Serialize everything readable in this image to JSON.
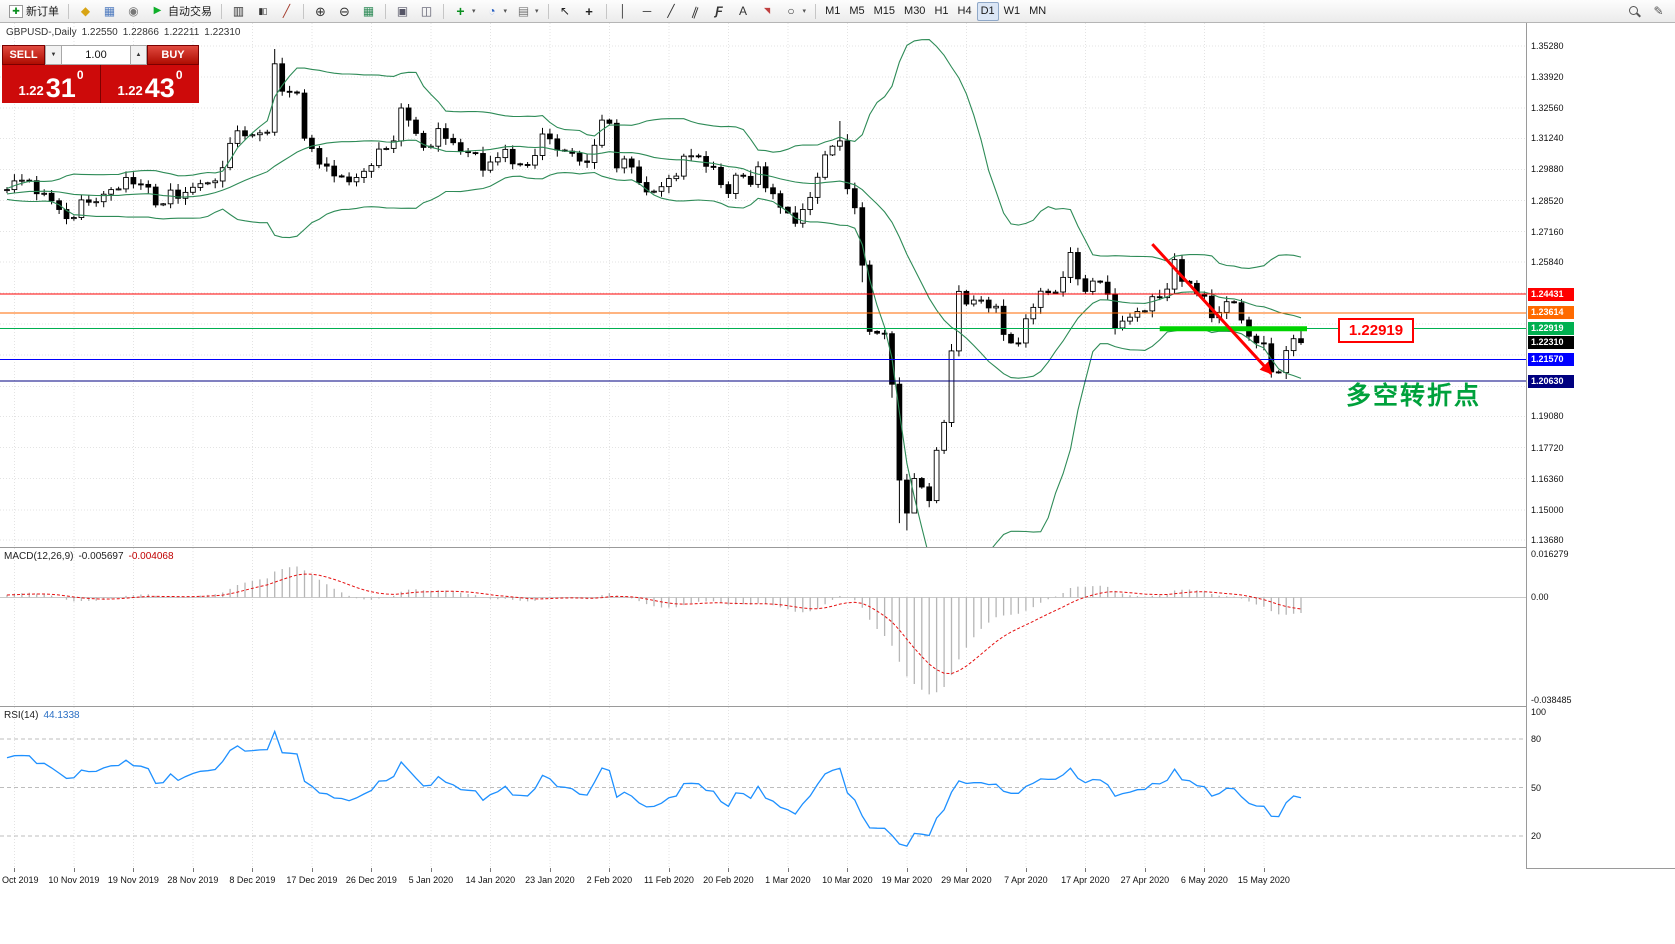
{
  "toolbar": {
    "caret_glyph": "▾",
    "icon_glyphs": {
      "newchart": "✚",
      "diamond": "◆",
      "terminal": "▦",
      "tester": "◉",
      "play": "▶",
      "bars": "▥",
      "candles": "▮▯",
      "linechart": "╱",
      "zoomin": "⊕",
      "zoomout": "⊖",
      "tile": "▦",
      "autoscroll": "▣",
      "shift": "◫",
      "indicator": "+",
      "clock": "◔",
      "template": "▤",
      "cursor": "↖",
      "crosshair": "+",
      "vline": "│",
      "hline": "─",
      "trend": "╱",
      "channel": "∥",
      "fibo": "Ƒ",
      "text": "A",
      "label": "◥",
      "shape": "○",
      "magnifier": "",
      "pencil": "✎"
    },
    "groups": [
      {
        "items": [
          {
            "name": "new-order-button",
            "icon": "newchart",
            "label": "新订单"
          }
        ]
      },
      {
        "items": [
          {
            "name": "profiles-button",
            "icon": "diamond"
          },
          {
            "name": "terminal-button",
            "icon": "terminal"
          },
          {
            "name": "strategy-tester-button",
            "icon": "tester"
          },
          {
            "name": "auto-trading-button",
            "icon": "play",
            "label": "自动交易"
          }
        ]
      },
      {
        "items": [
          {
            "name": "bar-chart-button",
            "icon": "bars"
          },
          {
            "name": "candlestick-chart-button",
            "icon": "candles"
          },
          {
            "name": "line-chart-button",
            "icon": "linechart"
          }
        ]
      },
      {
        "items": [
          {
            "name": "zoom-in-button",
            "icon": "zoomin"
          },
          {
            "name": "zoom-out-button",
            "icon": "zoomout"
          },
          {
            "name": "tile-windows-button",
            "icon": "tile"
          }
        ]
      },
      {
        "items": [
          {
            "name": "auto-scroll-button",
            "icon": "autoscroll"
          },
          {
            "name": "chart-shift-button",
            "icon": "shift"
          }
        ]
      },
      {
        "items": [
          {
            "name": "indicators-button",
            "icon": "indicator",
            "caret": true
          },
          {
            "name": "periods-button",
            "icon": "clock",
            "caret": true
          },
          {
            "name": "templates-button",
            "icon": "template",
            "caret": true
          }
        ]
      },
      {
        "items": [
          {
            "name": "cursor-button",
            "icon": "cursor"
          },
          {
            "name": "crosshair-button",
            "icon": "crosshair"
          }
        ]
      },
      {
        "items": [
          {
            "name": "vertical-line-button",
            "icon": "vline"
          },
          {
            "name": "horizontal-line-button",
            "icon": "hline"
          },
          {
            "name": "trendline-button",
            "icon": "trend"
          },
          {
            "name": "equidistant-channel-button",
            "icon": "channel"
          },
          {
            "name": "fibonacci-button",
            "icon": "fibo"
          },
          {
            "name": "text-button",
            "icon": "text"
          },
          {
            "name": "arrows-button",
            "icon": "label"
          },
          {
            "name": "shapes-button",
            "icon": "shape",
            "caret": true
          }
        ]
      },
      {
        "items": [
          {
            "name": "timeframe-m1-button",
            "label": "M1"
          },
          {
            "name": "timeframe-m5-button",
            "label": "M5"
          },
          {
            "name": "timeframe-m15-button",
            "label": "M15"
          },
          {
            "name": "timeframe-m30-button",
            "label": "M30"
          },
          {
            "name": "timeframe-h1-button",
            "label": "H1"
          },
          {
            "name": "timeframe-h4-button",
            "label": "H4"
          },
          {
            "name": "timeframe-d1-button",
            "label": "D1",
            "active": true
          },
          {
            "name": "timeframe-w1-button",
            "label": "W1"
          },
          {
            "name": "timeframe-mn-button",
            "label": "MN"
          }
        ]
      },
      {
        "right": true,
        "items": [
          {
            "name": "search-button",
            "icon": "magnifier"
          },
          {
            "name": "quick-edit-button",
            "icon": "pencil"
          }
        ]
      }
    ]
  },
  "chart_header": {
    "symbol_period": "GBPUSD-,Daily",
    "open": "1.22550",
    "high": "1.22866",
    "low": "1.22211",
    "close": "1.22310"
  },
  "one_click": {
    "sell_label": "SELL",
    "buy_label": "BUY",
    "volume": "1.00",
    "step_down_glyph": "▼",
    "step_up_glyph": "▲",
    "sell_price": {
      "prefix": "1.22",
      "big": "31",
      "sup": "0"
    },
    "buy_price": {
      "prefix": "1.22",
      "big": "43",
      "sup": "0"
    }
  },
  "annotations": {
    "callout": "1.22919",
    "label": "多空转折点",
    "label_color": "#00a13c"
  },
  "chart_data": {
    "type": "candlestick+indicators",
    "symbol": "GBPUSD-",
    "timeframe": "Daily",
    "price_axis": {
      "labels": [
        "1.35280",
        "1.33920",
        "1.32560",
        "1.31240",
        "1.29880",
        "1.28520",
        "1.27160",
        "1.25840",
        "1.19080",
        "1.17720",
        "1.16360",
        "1.15000",
        "1.13680"
      ],
      "grid": [
        1.3528,
        1.3392,
        1.3256,
        1.3124,
        1.2988,
        1.2852,
        1.2716,
        1.2584,
        1.2448,
        1.2312,
        1.2176,
        1.204,
        1.1908,
        1.1772,
        1.1636,
        1.15,
        1.1368
      ],
      "max": 1.3528,
      "min": 1.1368
    },
    "time_axis": [
      "Oct 2019",
      "10 Nov 2019",
      "19 Nov 2019",
      "28 Nov 2019",
      "8 Dec 2019",
      "17 Dec 2019",
      "26 Dec 2019",
      "5 Jan 2020",
      "14 Jan 2020",
      "23 Jan 2020",
      "2 Feb 2020",
      "11 Feb 2020",
      "20 Feb 2020",
      "1 Mar 2020",
      "10 Mar 2020",
      "19 Mar 2020",
      "29 Mar 2020",
      "7 Apr 2020",
      "17 Apr 2020",
      "27 Apr 2020",
      "6 May 2020",
      "15 May 2020"
    ],
    "seed_closes_offscreen": [
      1.285,
      1.2858,
      1.2866,
      1.2874,
      1.288,
      1.2872,
      1.2861,
      1.2868,
      1.2876,
      1.2884,
      1.289,
      1.2883,
      1.2875,
      1.2882,
      1.289,
      1.2897,
      1.2893,
      1.2887,
      1.2892,
      1.2896
    ],
    "closes": [
      1.29,
      1.2938,
      1.2941,
      1.2939,
      1.2882,
      1.2884,
      1.2851,
      1.2813,
      1.2773,
      1.2778,
      1.2855,
      1.2845,
      1.2847,
      1.288,
      1.29,
      1.2903,
      1.2953,
      1.2925,
      1.2923,
      1.2911,
      1.2833,
      1.2838,
      1.2898,
      1.2862,
      1.2888,
      1.291,
      1.2926,
      1.293,
      1.2938,
      1.2996,
      1.3102,
      1.3157,
      1.3135,
      1.314,
      1.3148,
      1.3151,
      1.345,
      1.333,
      1.3327,
      1.3322,
      1.3125,
      1.308,
      1.3012,
      1.3003,
      1.296,
      1.2955,
      1.2934,
      1.2953,
      1.298,
      1.3005,
      1.3077,
      1.308,
      1.3113,
      1.3257,
      1.3204,
      1.3146,
      1.3085,
      1.309,
      1.3167,
      1.3124,
      1.3105,
      1.3068,
      1.3062,
      1.3058,
      1.2985,
      1.3021,
      1.304,
      1.3076,
      1.3013,
      1.301,
      1.3007,
      1.3049,
      1.3143,
      1.3122,
      1.3073,
      1.3068,
      1.3059,
      1.3025,
      1.3019,
      1.3094,
      1.3204,
      1.319,
      1.2995,
      1.3034,
      1.2999,
      1.2931,
      1.289,
      1.2893,
      1.2913,
      1.2948,
      1.2959,
      1.3046,
      1.3048,
      1.3045,
      1.3002,
      1.2997,
      1.2922,
      1.2883,
      1.2963,
      1.2958,
      1.2923,
      1.3,
      1.2908,
      1.2882,
      1.2823,
      1.2798,
      1.2753,
      1.2813,
      1.2866,
      1.2954,
      1.3052,
      1.309,
      1.3113,
      1.2904,
      1.2821,
      1.257,
      1.228,
      1.2272,
      1.227,
      1.2049,
      1.163,
      1.1486,
      1.1637,
      1.16,
      1.154,
      1.176,
      1.1882,
      1.2195,
      1.2455,
      1.24,
      1.2417,
      1.2417,
      1.2383,
      1.239,
      1.2267,
      1.223,
      1.2229,
      1.2335,
      1.2385,
      1.2456,
      1.245,
      1.2452,
      1.2516,
      1.2625,
      1.251,
      1.2455,
      1.25,
      1.2495,
      1.2442,
      1.2295,
      1.2325,
      1.2342,
      1.2367,
      1.237,
      1.2432,
      1.2428,
      1.2465,
      1.2594,
      1.2499,
      1.249,
      1.2444,
      1.2434,
      1.234,
      1.2363,
      1.241,
      1.2405,
      1.233,
      1.2259,
      1.223,
      1.2226,
      1.2103,
      1.21,
      1.2196,
      1.2248,
      1.2231
    ],
    "overrides": {
      "36": {
        "h": 1.3515
      },
      "112": {
        "h": 1.32
      },
      "115": {
        "l": 1.2495
      },
      "119": {
        "l": 1.199
      },
      "120": {
        "l": 1.1442
      },
      "121": {
        "l": 1.141
      },
      "122": {
        "l": 1.1565
      },
      "143": {
        "h": 1.2648
      },
      "157": {
        "h": 1.2622
      },
      "170": {
        "l": 1.2078
      },
      "172": {
        "l": 1.2072
      },
      "174": {
        "h": 1.2287,
        "l": 1.2221
      }
    },
    "bollinger": {
      "period": 20,
      "deviation": 2,
      "color": "#2e8b57"
    },
    "hlines": [
      {
        "price": 1.24431,
        "label": "1.24431",
        "color": "#ff0000"
      },
      {
        "price": 1.23614,
        "label": "1.23614",
        "color": "#ff6a00"
      },
      {
        "price": 1.22919,
        "label": "1.22919",
        "color": "#00b050"
      },
      {
        "price": 1.2157,
        "label": "1.21570",
        "color": "#0000ff"
      },
      {
        "price": 1.2063,
        "label": "1.20630",
        "color": "#000080"
      }
    ],
    "current_price_tag": {
      "price": 1.2231,
      "label": "1.22310",
      "color": "#000000"
    },
    "thick_line": {
      "price": 1.22919,
      "from_bar": 155,
      "to_bar": 174,
      "color": "#00d300"
    },
    "annotation_arrow": {
      "from": {
        "bar": 154,
        "price": 1.2662
      },
      "to": {
        "bar": 170,
        "price": 1.2095
      },
      "color": "#ff0000"
    },
    "macd": {
      "name": "MACD(12,26,9)",
      "main_value": "-0.005697",
      "signal_value": "-0.004068",
      "params": [
        12,
        26,
        9
      ],
      "scale_max": "0.016279",
      "scale_zero": "0.00",
      "scale_min": "-0.038485",
      "hist_color": "#b6b6b6",
      "signal_color": "#e51010"
    },
    "rsi": {
      "name": "RSI(14)",
      "value": "44.1338",
      "period": 14,
      "levels": [
        80,
        50,
        20
      ],
      "scale_labels": [
        {
          "text": "100",
          "value": 100
        },
        {
          "text": "80",
          "value": 80
        },
        {
          "text": "50",
          "value": 50
        },
        {
          "text": "20",
          "value": 20
        }
      ],
      "line_color": "#1e90ff"
    },
    "colors": {
      "bull": "#ffffff",
      "bear": "#000000",
      "wick": "#000000",
      "grid": "#e3e3e3"
    }
  }
}
